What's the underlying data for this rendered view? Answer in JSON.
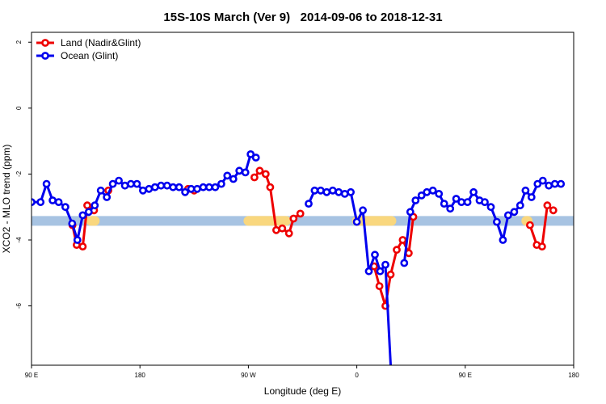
{
  "chart_data": {
    "type": "line",
    "title": "15S-10S March (Ver 9)   2014-09-06 to 2018-12-31",
    "xlabel": "Longitude (deg E)",
    "ylabel": "XCO2 - MLO trend (ppm)",
    "xlim": [
      90,
      450
    ],
    "ylim": [
      -7.8,
      2.3
    ],
    "x_ticks": [
      {
        "value": 90,
        "label": "90 E"
      },
      {
        "value": 162,
        "label": "180"
      },
      {
        "value": 234,
        "label": "90 W"
      },
      {
        "value": 306,
        "label": "0"
      },
      {
        "value": 378,
        "label": "90 E"
      },
      {
        "value": 450,
        "label": "180"
      }
    ],
    "y_ticks": [
      {
        "value": 2,
        "label": "2"
      },
      {
        "value": 0,
        "label": "0"
      },
      {
        "value": -2,
        "label": "-2"
      },
      {
        "value": -4,
        "label": "-4"
      },
      {
        "value": -6,
        "label": "-6"
      }
    ],
    "legend_position": "top-left",
    "grid": false,
    "series": [
      {
        "name": "Land (Nadir&Glint)",
        "color": "#ee0000",
        "segments": [
          [
            [
              117.2,
              -3.55
            ],
            [
              120.0,
              -4.15
            ],
            [
              124.0,
              -4.2
            ],
            [
              127.0,
              -2.95
            ],
            [
              131.5,
              -3.1
            ]
          ],
          [
            [
              141.0,
              -2.5
            ]
          ],
          [
            [
              194.0,
              -2.45
            ],
            [
              198.0,
              -2.5
            ]
          ],
          [
            [
              238.0,
              -2.1
            ],
            [
              241.5,
              -1.9
            ],
            [
              245.5,
              -2.0
            ],
            [
              248.5,
              -2.4
            ],
            [
              252.5,
              -3.7
            ],
            [
              256.5,
              -3.65
            ],
            [
              261.0,
              -3.8
            ],
            [
              264.0,
              -3.35
            ],
            [
              268.5,
              -3.2
            ]
          ],
          [
            [
              317.5,
              -4.8
            ],
            [
              321.0,
              -5.4
            ],
            [
              325.0,
              -6.0
            ],
            [
              328.5,
              -5.05
            ],
            [
              332.5,
              -4.3
            ],
            [
              336.5,
              -4.0
            ],
            [
              340.5,
              -4.4
            ],
            [
              343.5,
              -3.3
            ]
          ],
          [
            [
              421.0,
              -3.55
            ],
            [
              425.5,
              -4.15
            ],
            [
              429.0,
              -4.2
            ],
            [
              432.5,
              -2.95
            ],
            [
              436.5,
              -3.1
            ]
          ]
        ]
      },
      {
        "name": "Ocean (Glint)",
        "color": "#0000ee",
        "segments": [
          [
            [
              90.0,
              -2.85
            ],
            [
              96.0,
              -2.85
            ],
            [
              100.0,
              -2.3
            ],
            [
              104.0,
              -2.8
            ],
            [
              108.0,
              -2.85
            ],
            [
              112.5,
              -3.0
            ],
            [
              117.0,
              -3.5
            ],
            [
              120.5,
              -4.0
            ],
            [
              124.0,
              -3.25
            ],
            [
              128.0,
              -3.15
            ],
            [
              132.0,
              -2.95
            ],
            [
              136.0,
              -2.5
            ],
            [
              140.0,
              -2.7
            ],
            [
              144.0,
              -2.3
            ],
            [
              148.0,
              -2.2
            ],
            [
              152.0,
              -2.35
            ],
            [
              156.0,
              -2.3
            ],
            [
              160.0,
              -2.3
            ],
            [
              164.0,
              -2.5
            ],
            [
              168.0,
              -2.45
            ],
            [
              172.0,
              -2.4
            ],
            [
              176.0,
              -2.35
            ],
            [
              180.0,
              -2.35
            ],
            [
              184.0,
              -2.4
            ],
            [
              188.0,
              -2.4
            ],
            [
              192.0,
              -2.55
            ],
            [
              196.0,
              -2.45
            ],
            [
              200.0,
              -2.45
            ],
            [
              204.0,
              -2.4
            ],
            [
              208.0,
              -2.4
            ],
            [
              212.0,
              -2.4
            ],
            [
              216.0,
              -2.3
            ],
            [
              220.0,
              -2.05
            ],
            [
              224.0,
              -2.15
            ],
            [
              228.0,
              -1.9
            ],
            [
              232.0,
              -1.95
            ],
            [
              235.5,
              -1.4
            ],
            [
              239.0,
              -1.5
            ]
          ],
          [
            [
              274.0,
              -2.9
            ],
            [
              278.0,
              -2.5
            ],
            [
              282.0,
              -2.5
            ],
            [
              286.0,
              -2.55
            ],
            [
              290.0,
              -2.5
            ],
            [
              294.0,
              -2.55
            ],
            [
              298.0,
              -2.6
            ],
            [
              302.0,
              -2.55
            ],
            [
              306.0,
              -3.45
            ],
            [
              310.0,
              -3.1
            ],
            [
              314.0,
              -4.95
            ],
            [
              318.0,
              -4.45
            ],
            [
              321.5,
              -4.95
            ],
            [
              325.0,
              -4.75
            ],
            [
              328.5,
              -7.8
            ]
          ],
          [
            [
              337.5,
              -4.7
            ],
            [
              341.5,
              -3.15
            ],
            [
              345.0,
              -2.8
            ],
            [
              349.0,
              -2.65
            ],
            [
              352.5,
              -2.55
            ],
            [
              356.5,
              -2.5
            ],
            [
              360.5,
              -2.6
            ],
            [
              364.0,
              -2.9
            ],
            [
              368.0,
              -3.05
            ],
            [
              372.0,
              -2.75
            ],
            [
              375.5,
              -2.85
            ],
            [
              379.5,
              -2.85
            ],
            [
              383.5,
              -2.55
            ],
            [
              387.5,
              -2.8
            ],
            [
              391.0,
              -2.85
            ],
            [
              395.0,
              -3.0
            ],
            [
              399.0,
              -3.45
            ],
            [
              403.0,
              -4.0
            ],
            [
              406.5,
              -3.25
            ],
            [
              410.5,
              -3.15
            ],
            [
              414.5,
              -2.95
            ],
            [
              418.0,
              -2.5
            ],
            [
              422.0,
              -2.7
            ],
            [
              426.0,
              -2.3
            ],
            [
              429.5,
              -2.2
            ],
            [
              433.5,
              -2.35
            ],
            [
              437.5,
              -2.3
            ],
            [
              441.5,
              -2.3
            ]
          ]
        ]
      }
    ],
    "land_ocean_band": {
      "y_center": -3.42,
      "ocean_color": "#a7c3e2",
      "land_color": "#f9d77e",
      "land_ranges": [
        [
          129.5,
          132.0
        ],
        [
          234.0,
          259.0
        ],
        [
          306.0,
          329.0
        ],
        [
          418.5,
          419.5
        ]
      ]
    }
  }
}
